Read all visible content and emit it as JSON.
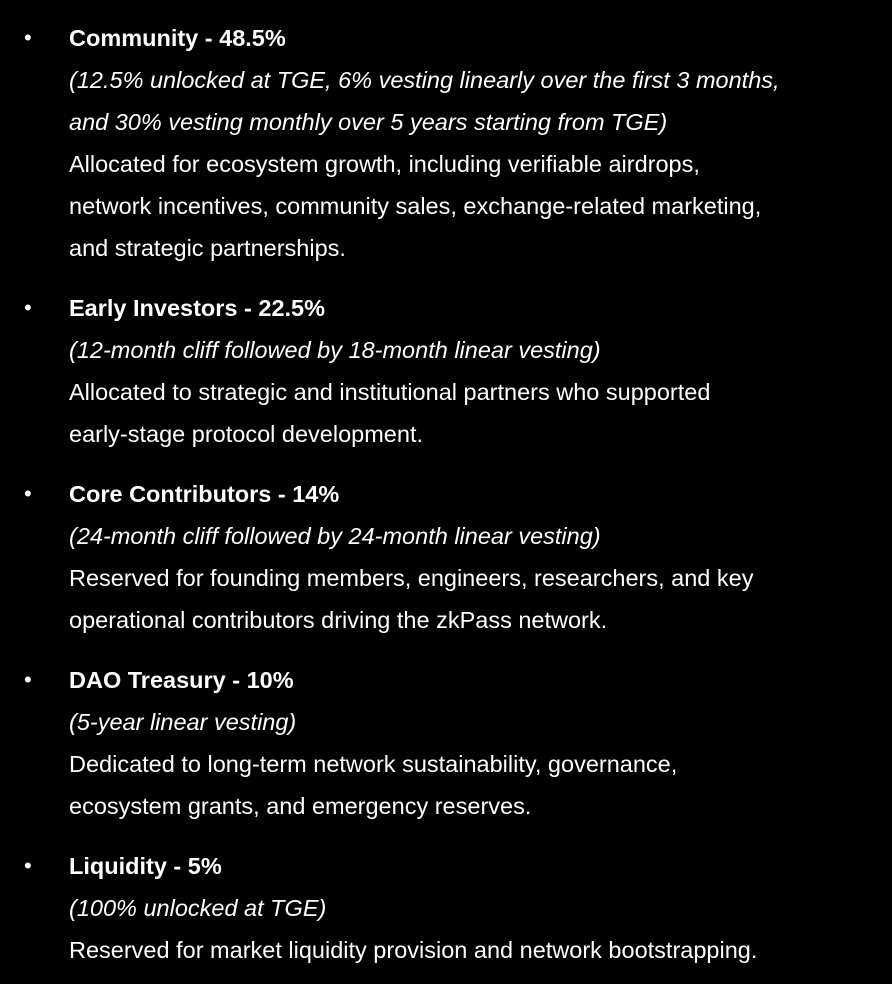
{
  "items": [
    {
      "title": "Community - 48.5%",
      "note": [
        "(12.5% unlocked at TGE, 6% vesting linearly over the first 3 months,",
        "and 30% vesting monthly over 5 years starting from TGE)"
      ],
      "desc": [
        "Allocated for ecosystem growth, including verifiable airdrops,",
        "network incentives, community sales, exchange-related marketing,",
        "and strategic partnerships."
      ]
    },
    {
      "title": "Early Investors - 22.5%",
      "note": [
        "(12-month cliff followed by 18-month linear vesting)"
      ],
      "desc": [
        "Allocated to strategic and institutional partners who supported",
        "early-stage protocol development."
      ]
    },
    {
      "title": "Core Contributors - 14%",
      "note": [
        "(24-month cliff followed by 24-month linear vesting)"
      ],
      "desc": [
        "Reserved for founding members, engineers, researchers, and key",
        "operational contributors driving the zkPass network."
      ]
    },
    {
      "title": "DAO Treasury - 10%",
      "note": [
        "(5-year linear vesting)"
      ],
      "desc": [
        "Dedicated to long-term network sustainability, governance,",
        "ecosystem grants, and emergency reserves."
      ]
    },
    {
      "title": "Liquidity - 5%",
      "note": [
        "(100% unlocked at TGE)"
      ],
      "desc": [
        "Reserved for market liquidity provision and network bootstrapping."
      ]
    }
  ]
}
